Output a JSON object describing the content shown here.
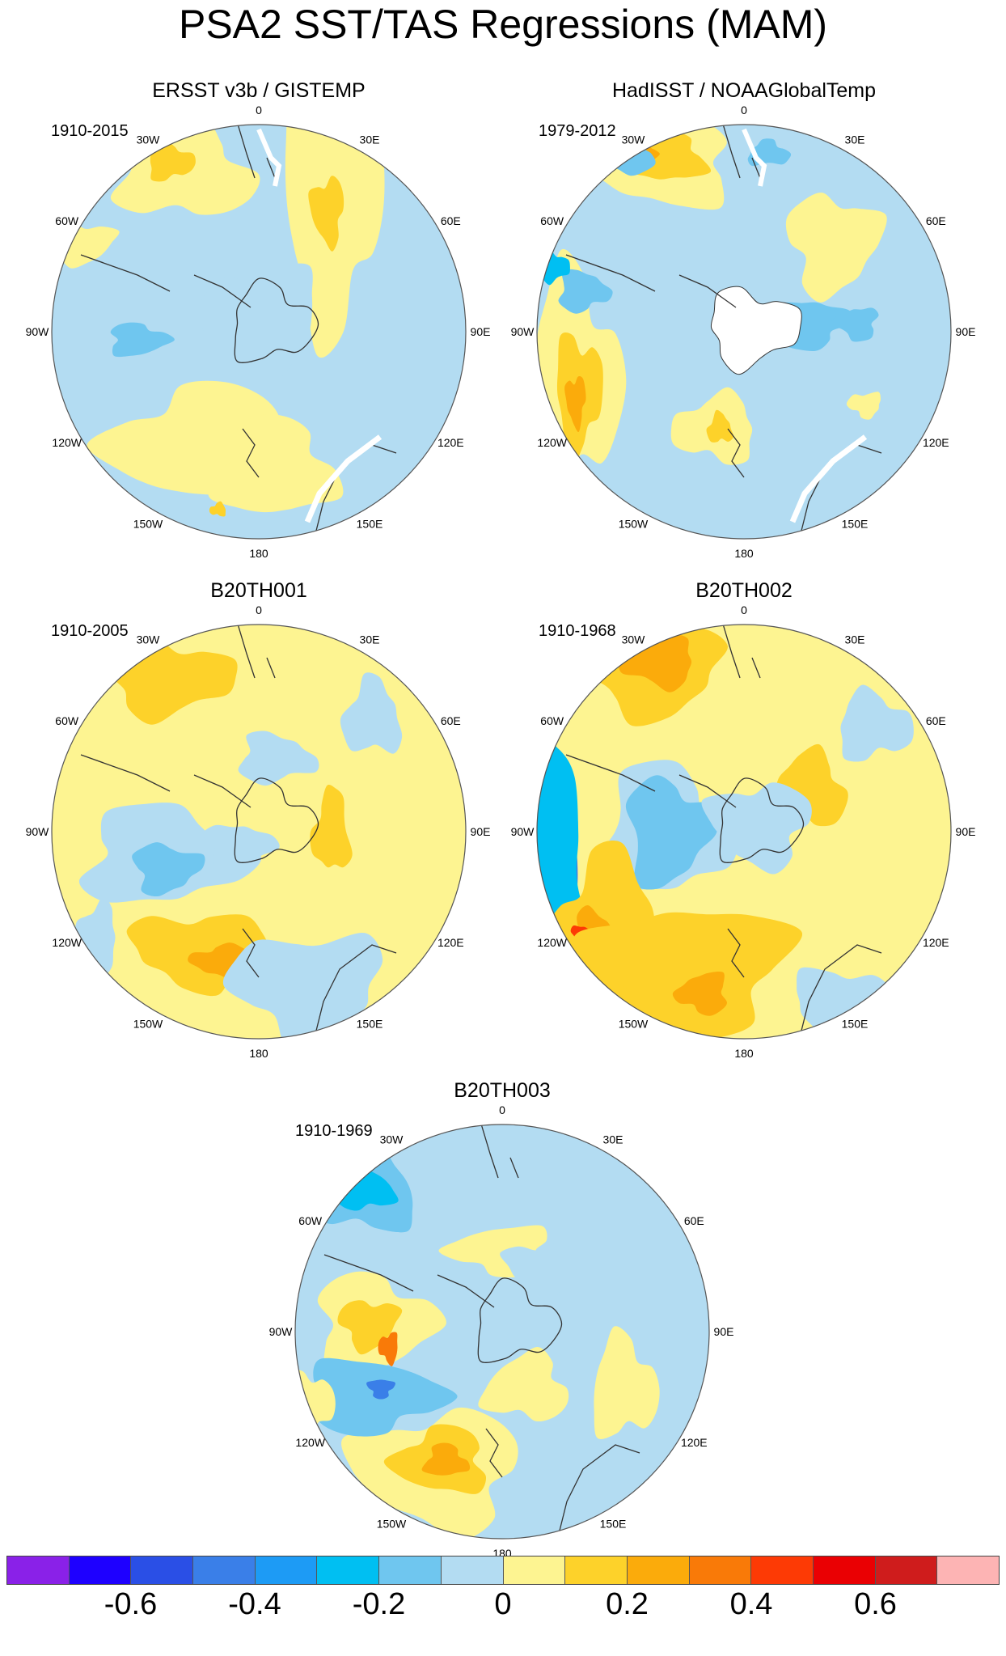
{
  "title": "PSA2 SST/TAS Regressions (MAM)",
  "longitude_labels": [
    "0",
    "30E",
    "60E",
    "90E",
    "120E",
    "150E",
    "180",
    "150W",
    "120W",
    "90W",
    "60W",
    "30W"
  ],
  "panels": [
    {
      "title": "ERSST v3b / GISTEMP",
      "period": "1910-2015",
      "land_mask": "coastlines",
      "missing_gaps": true
    },
    {
      "title": "HadISST / NOAAGlobalTemp",
      "period": "1979-2012",
      "land_mask": "white_antarctica",
      "missing_gaps": true
    },
    {
      "title": "B20TH001",
      "period": "1910-2005",
      "land_mask": "coastlines",
      "missing_gaps": false
    },
    {
      "title": "B20TH002",
      "period": "1910-1968",
      "land_mask": "coastlines",
      "missing_gaps": false
    },
    {
      "title": "B20TH003",
      "period": "1910-1969",
      "land_mask": "coastlines",
      "missing_gaps": false
    }
  ],
  "colorbar": {
    "colors": [
      "#8a21e8",
      "#1e00ff",
      "#2a4fe6",
      "#3a7fe8",
      "#1d9bf5",
      "#00bff2",
      "#6fc6ef",
      "#b3dcf2",
      "#fdf491",
      "#fdd22a",
      "#fbab0b",
      "#f97a08",
      "#fd3a05",
      "#ea0003",
      "#cf1c1c",
      "#fdb4b4"
    ],
    "tick_labels": [
      "-0.6",
      "-0.4",
      "-0.2",
      "0",
      "0.2",
      "0.4",
      "0.6"
    ]
  }
}
